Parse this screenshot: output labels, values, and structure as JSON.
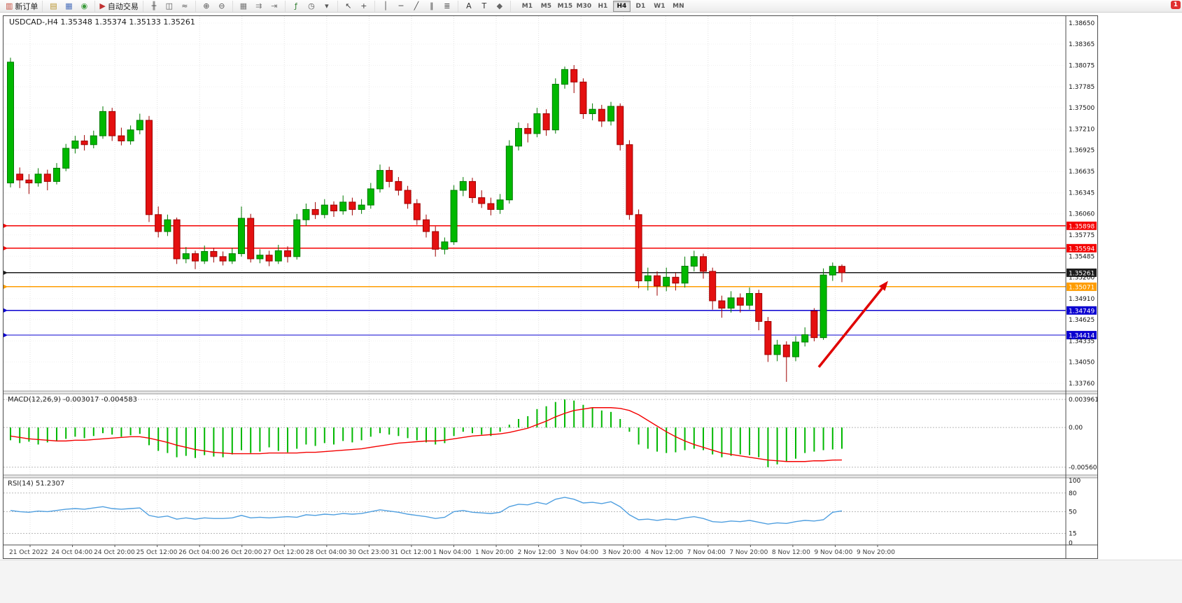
{
  "window": {
    "notification_badge": "1"
  },
  "toolbar": {
    "groups": [
      [
        {
          "name": "new-order-button",
          "glyph": "▥",
          "glyph_color": "#c44a3a",
          "label": "新订单"
        }
      ],
      [
        {
          "name": "market-watch-button",
          "glyph": "▤",
          "glyph_color": "#b8932a"
        },
        {
          "name": "data-window-button",
          "glyph": "▦",
          "glyph_color": "#4a6fbb"
        },
        {
          "name": "navigator-button",
          "glyph": "◉",
          "glyph_color": "#3a9a3a"
        }
      ],
      [
        {
          "name": "auto-trading-button",
          "glyph": "▶",
          "glyph_color": "#c03030",
          "label": "自动交易"
        }
      ],
      [
        {
          "name": "bar-chart-button",
          "glyph": "╫",
          "glyph_color": "#555555"
        },
        {
          "name": "candlestick-chart-button",
          "glyph": "◫",
          "glyph_color": "#555555"
        },
        {
          "name": "line-chart-button",
          "glyph": "≈",
          "glyph_color": "#555555"
        }
      ],
      [
        {
          "name": "zoom-in-button",
          "glyph": "⊕",
          "glyph_color": "#555555"
        },
        {
          "name": "zoom-out-button",
          "glyph": "⊖",
          "glyph_color": "#555555"
        }
      ],
      [
        {
          "name": "tile-windows-button",
          "glyph": "▦",
          "glyph_color": "#777777"
        },
        {
          "name": "auto-scroll-button",
          "glyph": "⇉",
          "glyph_color": "#777777"
        },
        {
          "name": "chart-shift-button",
          "glyph": "⇥",
          "glyph_color": "#777777"
        }
      ],
      [
        {
          "name": "indicators-button",
          "glyph": "ƒ",
          "glyph_color": "#2f7d2f"
        },
        {
          "name": "periods-button",
          "glyph": "◷",
          "glyph_color": "#555555"
        },
        {
          "name": "templates-button",
          "glyph": "▾",
          "glyph_color": "#555555"
        }
      ],
      [
        {
          "name": "cursor-button",
          "glyph": "↖",
          "glyph_color": "#444444"
        },
        {
          "name": "crosshair-button",
          "glyph": "+",
          "glyph_color": "#444444"
        }
      ],
      [
        {
          "name": "vertical-line-button",
          "glyph": "│",
          "glyph_color": "#444444"
        },
        {
          "name": "horizontal-line-button",
          "glyph": "─",
          "glyph_color": "#444444"
        },
        {
          "name": "trendline-button",
          "glyph": "╱",
          "glyph_color": "#444444"
        },
        {
          "name": "channel-button",
          "glyph": "∥",
          "glyph_color": "#444444"
        },
        {
          "name": "fibonacci-button",
          "glyph": "≣",
          "glyph_color": "#444444"
        }
      ],
      [
        {
          "name": "text-button",
          "glyph": "A",
          "glyph_color": "#333333"
        },
        {
          "name": "text-label-button",
          "glyph": "T",
          "glyph_color": "#333333"
        },
        {
          "name": "shapes-button",
          "glyph": "◆",
          "glyph_color": "#666666"
        }
      ]
    ],
    "timeframes": [
      "M1",
      "M5",
      "M15",
      "M30",
      "H1",
      "H4",
      "D1",
      "W1",
      "MN"
    ],
    "active_timeframe": "H4"
  },
  "chart_data": {
    "type": "candlestick",
    "symbol": "USDCAD-",
    "timeframe": "H4",
    "title": "USDCAD-,H4",
    "ohlc_label": "1.35348 1.35374 1.35133 1.35261",
    "price_range": [
      1.33655,
      1.38745
    ],
    "y_ticks": [
      "1.38650",
      "1.38365",
      "1.38075",
      "1.37785",
      "1.37500",
      "1.37210",
      "1.36925",
      "1.36635",
      "1.36345",
      "1.36060",
      "1.35775",
      "1.35485",
      "1.35200",
      "1.34910",
      "1.34625",
      "1.34335",
      "1.34050",
      "1.33760"
    ],
    "x_labels": [
      "21 Oct 2022",
      "24 Oct 04:00",
      "24 Oct 20:00",
      "25 Oct 12:00",
      "26 Oct 04:00",
      "26 Oct 20:00",
      "27 Oct 12:00",
      "28 Oct 04:00",
      "30 Oct 23:00",
      "31 Oct 12:00",
      "1 Nov 04:00",
      "1 Nov 20:00",
      "2 Nov 12:00",
      "3 Nov 04:00",
      "3 Nov 20:00",
      "4 Nov 12:00",
      "7 Nov 04:00",
      "7 Nov 20:00",
      "8 Nov 12:00",
      "9 Nov 04:00",
      "9 Nov 20:00"
    ],
    "bull_color": "#00b800",
    "bull_stroke": "#007a00",
    "bear_color": "#e41010",
    "bear_stroke": "#9e0000",
    "candles": [
      [
        1.3648,
        1.3818,
        1.3642,
        1.3812
      ],
      [
        1.366,
        1.3669,
        1.3641,
        1.3652
      ],
      [
        1.3652,
        1.366,
        1.3633,
        1.3648
      ],
      [
        1.3648,
        1.3668,
        1.3643,
        1.366
      ],
      [
        1.366,
        1.3666,
        1.3638,
        1.365
      ],
      [
        1.365,
        1.3675,
        1.3646,
        1.3668
      ],
      [
        1.3668,
        1.3701,
        1.3664,
        1.3695
      ],
      [
        1.3695,
        1.3712,
        1.3688,
        1.3705
      ],
      [
        1.3705,
        1.3713,
        1.3692,
        1.37
      ],
      [
        1.37,
        1.3719,
        1.3695,
        1.3712
      ],
      [
        1.3712,
        1.3752,
        1.3708,
        1.3745
      ],
      [
        1.3745,
        1.375,
        1.3705,
        1.3712
      ],
      [
        1.3712,
        1.3723,
        1.3699,
        1.3705
      ],
      [
        1.3705,
        1.3726,
        1.37,
        1.372
      ],
      [
        1.372,
        1.3742,
        1.3714,
        1.3733
      ],
      [
        1.3733,
        1.3739,
        1.3595,
        1.3605
      ],
      [
        1.3605,
        1.3616,
        1.3574,
        1.3582
      ],
      [
        1.3582,
        1.3605,
        1.3576,
        1.3598
      ],
      [
        1.3598,
        1.3601,
        1.3538,
        1.3545
      ],
      [
        1.3545,
        1.3561,
        1.3539,
        1.3552
      ],
      [
        1.3552,
        1.3556,
        1.3531,
        1.3542
      ],
      [
        1.3542,
        1.3563,
        1.3538,
        1.3555
      ],
      [
        1.3555,
        1.356,
        1.354,
        1.3548
      ],
      [
        1.3548,
        1.3555,
        1.3536,
        1.3542
      ],
      [
        1.3542,
        1.356,
        1.3538,
        1.3552
      ],
      [
        1.3552,
        1.3616,
        1.3548,
        1.36
      ],
      [
        1.36,
        1.3606,
        1.354,
        1.3545
      ],
      [
        1.3545,
        1.3558,
        1.3539,
        1.355
      ],
      [
        1.355,
        1.3556,
        1.3535,
        1.3542
      ],
      [
        1.3542,
        1.3564,
        1.3538,
        1.3556
      ],
      [
        1.3556,
        1.3562,
        1.354,
        1.3548
      ],
      [
        1.3548,
        1.3606,
        1.3544,
        1.3598
      ],
      [
        1.3598,
        1.362,
        1.359,
        1.3612
      ],
      [
        1.3612,
        1.3622,
        1.3599,
        1.3605
      ],
      [
        1.3605,
        1.3626,
        1.36,
        1.3618
      ],
      [
        1.3618,
        1.3623,
        1.3602,
        1.361
      ],
      [
        1.361,
        1.3631,
        1.3605,
        1.3622
      ],
      [
        1.3622,
        1.3628,
        1.3604,
        1.3612
      ],
      [
        1.3612,
        1.3626,
        1.3606,
        1.3618
      ],
      [
        1.3618,
        1.3648,
        1.3613,
        1.364
      ],
      [
        1.364,
        1.3673,
        1.3635,
        1.3665
      ],
      [
        1.3665,
        1.367,
        1.3642,
        1.365
      ],
      [
        1.365,
        1.3656,
        1.3631,
        1.3638
      ],
      [
        1.3638,
        1.3644,
        1.3613,
        1.362
      ],
      [
        1.362,
        1.3626,
        1.3591,
        1.3598
      ],
      [
        1.3598,
        1.3605,
        1.3574,
        1.3582
      ],
      [
        1.3582,
        1.3589,
        1.3548,
        1.3558
      ],
      [
        1.3558,
        1.3574,
        1.3551,
        1.3568
      ],
      [
        1.3568,
        1.3645,
        1.3564,
        1.3638
      ],
      [
        1.3638,
        1.3656,
        1.363,
        1.365
      ],
      [
        1.365,
        1.3655,
        1.3621,
        1.3628
      ],
      [
        1.3628,
        1.3638,
        1.3614,
        1.362
      ],
      [
        1.362,
        1.3628,
        1.3604,
        1.3612
      ],
      [
        1.3612,
        1.3633,
        1.3606,
        1.3625
      ],
      [
        1.3625,
        1.3706,
        1.362,
        1.3698
      ],
      [
        1.3698,
        1.373,
        1.3692,
        1.3722
      ],
      [
        1.3722,
        1.3729,
        1.3703,
        1.3715
      ],
      [
        1.3715,
        1.375,
        1.371,
        1.3742
      ],
      [
        1.3742,
        1.3748,
        1.3712,
        1.372
      ],
      [
        1.372,
        1.379,
        1.3715,
        1.3782
      ],
      [
        1.3782,
        1.3806,
        1.3776,
        1.3802
      ],
      [
        1.3802,
        1.3808,
        1.377,
        1.3785
      ],
      [
        1.3785,
        1.379,
        1.3735,
        1.3742
      ],
      [
        1.3742,
        1.3756,
        1.3733,
        1.3748
      ],
      [
        1.3748,
        1.3754,
        1.3724,
        1.3732
      ],
      [
        1.3732,
        1.3758,
        1.3726,
        1.3752
      ],
      [
        1.3752,
        1.3756,
        1.3692,
        1.37
      ],
      [
        1.37,
        1.3706,
        1.3598,
        1.3605
      ],
      [
        1.3605,
        1.3612,
        1.3505,
        1.3515
      ],
      [
        1.3515,
        1.3533,
        1.3502,
        1.3522
      ],
      [
        1.3522,
        1.3528,
        1.3495,
        1.3508
      ],
      [
        1.3508,
        1.3533,
        1.3501,
        1.352
      ],
      [
        1.352,
        1.3526,
        1.3502,
        1.3512
      ],
      [
        1.3512,
        1.3548,
        1.3506,
        1.3535
      ],
      [
        1.3535,
        1.3556,
        1.3528,
        1.3548
      ],
      [
        1.3548,
        1.3552,
        1.3518,
        1.3528
      ],
      [
        1.3528,
        1.3533,
        1.3476,
        1.3488
      ],
      [
        1.3488,
        1.3495,
        1.3465,
        1.3478
      ],
      [
        1.3478,
        1.3501,
        1.3472,
        1.3492
      ],
      [
        1.3492,
        1.3498,
        1.3472,
        1.3482
      ],
      [
        1.3482,
        1.3506,
        1.3476,
        1.3498
      ],
      [
        1.3498,
        1.3503,
        1.3448,
        1.346
      ],
      [
        1.346,
        1.3466,
        1.3405,
        1.3415
      ],
      [
        1.3415,
        1.3435,
        1.3406,
        1.3428
      ],
      [
        1.3428,
        1.3433,
        1.3378,
        1.3412
      ],
      [
        1.3412,
        1.344,
        1.3406,
        1.3432
      ],
      [
        1.3432,
        1.3452,
        1.3426,
        1.3442
      ],
      [
        1.3474,
        1.3478,
        1.3433,
        1.3438
      ],
      [
        1.3438,
        1.3532,
        1.3435,
        1.3523
      ],
      [
        1.3523,
        1.354,
        1.3515,
        1.35348
      ],
      [
        1.35348,
        1.35374,
        1.35133,
        1.35261
      ]
    ],
    "levels": [
      {
        "value": 1.35898,
        "label": "1.35898",
        "color": "#f40000"
      },
      {
        "value": 1.35594,
        "label": "1.35594",
        "color": "#f40000"
      },
      {
        "value": 1.35261,
        "label": "1.35261",
        "color": "#1c1c1c"
      },
      {
        "value": 1.35071,
        "label": "1.35071",
        "color": "#ff9d00"
      },
      {
        "value": 1.34749,
        "label": "1.34749",
        "color": "#0a00d0"
      },
      {
        "value": 1.34414,
        "label": "1.34414",
        "color": "#0a00d0"
      }
    ],
    "arrow": {
      "from_index": 87.5,
      "from_price": 1.3398,
      "to_index": 95,
      "to_price": 1.3515,
      "color": "#e00000"
    },
    "macd": {
      "label": "MACD(12,26,9)",
      "main_value": "-0.003017",
      "signal_value": "-0.004583",
      "range": [
        -0.0067,
        0.00475
      ],
      "y_ticks": [
        "0.003961",
        "0.00",
        "-0.005601"
      ],
      "histogram_color": "#00b800",
      "signal_color": "#f40000",
      "histogram": [
        -0.0018,
        -0.0022,
        -0.002,
        -0.0024,
        -0.0021,
        -0.0019,
        -0.0016,
        -0.0013,
        -0.0015,
        -0.0012,
        -0.0008,
        -0.001,
        -0.0013,
        -0.0011,
        -0.0009,
        -0.0025,
        -0.0033,
        -0.0036,
        -0.0042,
        -0.004,
        -0.0043,
        -0.0039,
        -0.0041,
        -0.0042,
        -0.0038,
        -0.0032,
        -0.0036,
        -0.0034,
        -0.0028,
        -0.0033,
        -0.0035,
        -0.003,
        -0.0024,
        -0.0026,
        -0.0022,
        -0.0024,
        -0.0019,
        -0.0021,
        -0.0018,
        -0.0013,
        -0.0008,
        -0.001,
        -0.0012,
        -0.0015,
        -0.0018,
        -0.0021,
        -0.0024,
        -0.0022,
        -0.0012,
        -0.0006,
        -0.0008,
        -0.001,
        -0.0012,
        -0.0006,
        0.0004,
        0.0012,
        0.0016,
        0.0026,
        0.003,
        0.0036,
        0.00396,
        0.0038,
        0.0032,
        0.0028,
        0.0024,
        0.0022,
        0.0012,
        -0.0006,
        -0.0024,
        -0.003,
        -0.0034,
        -0.0036,
        -0.0035,
        -0.0032,
        -0.003,
        -0.0032,
        -0.0038,
        -0.0042,
        -0.004,
        -0.0038,
        -0.0039,
        -0.0042,
        -0.0056,
        -0.0052,
        -0.0048,
        -0.0044,
        -0.0036,
        -0.0034,
        -0.0032,
        -0.0031,
        -0.003
      ],
      "signal": [
        -0.0012,
        -0.0014,
        -0.0016,
        -0.0017,
        -0.0018,
        -0.0019,
        -0.0019,
        -0.0018,
        -0.0018,
        -0.0017,
        -0.0016,
        -0.0015,
        -0.0014,
        -0.0013,
        -0.0013,
        -0.0015,
        -0.0018,
        -0.0021,
        -0.0025,
        -0.0028,
        -0.0031,
        -0.0033,
        -0.0035,
        -0.0036,
        -0.0037,
        -0.0037,
        -0.0037,
        -0.0037,
        -0.0036,
        -0.0036,
        -0.0036,
        -0.0036,
        -0.0035,
        -0.0035,
        -0.0034,
        -0.0033,
        -0.0032,
        -0.0031,
        -0.003,
        -0.0028,
        -0.0026,
        -0.0024,
        -0.0022,
        -0.0021,
        -0.002,
        -0.0019,
        -0.0019,
        -0.0018,
        -0.0016,
        -0.0014,
        -0.0012,
        -0.0011,
        -0.001,
        -0.0009,
        -0.0007,
        -0.0004,
        -0.0001,
        0.0004,
        0.0009,
        0.0015,
        0.002,
        0.0024,
        0.0026,
        0.0028,
        0.0028,
        0.0028,
        0.0027,
        0.0024,
        0.0018,
        0.001,
        0.0002,
        -0.0006,
        -0.0013,
        -0.0019,
        -0.0024,
        -0.0028,
        -0.0032,
        -0.0036,
        -0.0038,
        -0.004,
        -0.0042,
        -0.0044,
        -0.0046,
        -0.0047,
        -0.0048,
        -0.0048,
        -0.0048,
        -0.0047,
        -0.0047,
        -0.0046,
        -0.00458
      ]
    },
    "rsi": {
      "label": "RSI(14)",
      "value": "51.2307",
      "range": [
        -3.5,
        104.5
      ],
      "y_ticks": [
        "100",
        "80",
        "50",
        "15",
        "0"
      ],
      "level_lines": [
        80,
        50,
        15
      ],
      "line_color": "#4f9fe0",
      "values": [
        52,
        50,
        49,
        51,
        50,
        52,
        54,
        55,
        54,
        56,
        58,
        55,
        54,
        55,
        56,
        44,
        41,
        43,
        38,
        40,
        38,
        40,
        39,
        39,
        40,
        44,
        40,
        41,
        40,
        41,
        42,
        41,
        45,
        44,
        46,
        45,
        47,
        46,
        47,
        50,
        53,
        51,
        49,
        46,
        44,
        42,
        39,
        41,
        50,
        52,
        49,
        48,
        47,
        49,
        58,
        62,
        61,
        65,
        62,
        70,
        73,
        70,
        64,
        65,
        63,
        66,
        58,
        45,
        37,
        38,
        36,
        38,
        37,
        40,
        42,
        39,
        34,
        33,
        35,
        34,
        36,
        33,
        30,
        32,
        31,
        34,
        36,
        35,
        37,
        49,
        51.23
      ]
    }
  }
}
